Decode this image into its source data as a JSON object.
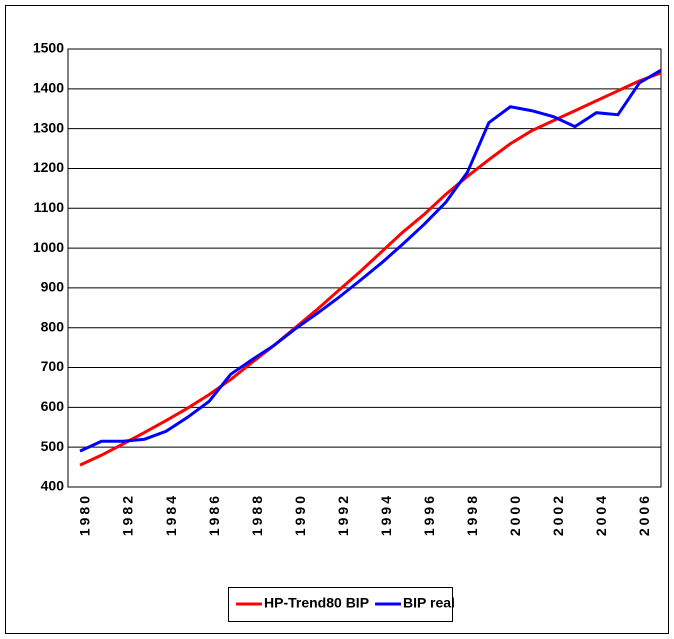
{
  "chart_data": {
    "type": "line",
    "categories": [
      "1980",
      null,
      "1982",
      null,
      "1984",
      null,
      "1986",
      null,
      "1988",
      null,
      "1990",
      null,
      "1992",
      null,
      "1994",
      null,
      "1996",
      null,
      "1998",
      null,
      "2000",
      null,
      "2002",
      null,
      "2004",
      null,
      "2006",
      null
    ],
    "series": [
      {
        "name": "HP-Trend80 BIP",
        "color": "#ff0000",
        "values": [
          455,
          480,
          508,
          537,
          567,
          598,
          632,
          670,
          713,
          755,
          800,
          845,
          893,
          940,
          990,
          1040,
          1085,
          1135,
          1180,
          1222,
          1262,
          1295,
          1320,
          1345,
          1370,
          1395,
          1420,
          1440
        ]
      },
      {
        "name": "BIP real",
        "color": "#0000ff",
        "values": [
          490,
          515,
          515,
          520,
          540,
          575,
          615,
          683,
          720,
          755,
          797,
          835,
          875,
          918,
          962,
          1010,
          1060,
          1115,
          1190,
          1315,
          1355,
          1345,
          1330,
          1305,
          1340,
          1335,
          1415,
          1447
        ]
      }
    ],
    "ylim": [
      400,
      1500
    ],
    "yticks": [
      400,
      500,
      600,
      700,
      800,
      900,
      1000,
      1100,
      1200,
      1300,
      1400,
      1500
    ],
    "grid": true,
    "legend": "bottom"
  }
}
